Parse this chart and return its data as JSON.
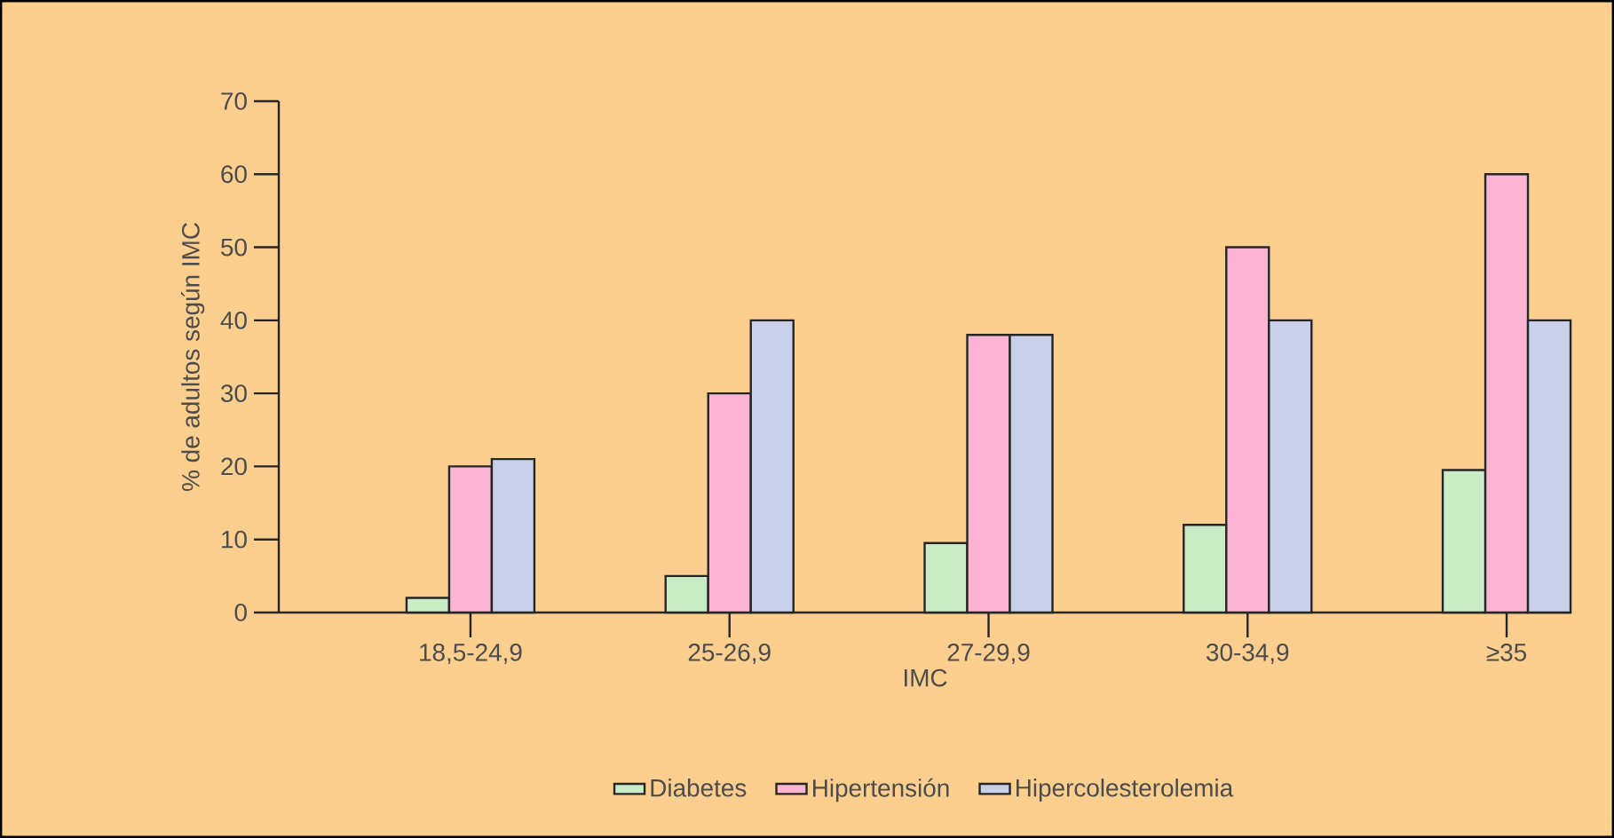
{
  "chart_data": {
    "type": "bar",
    "xlabel": "IMC",
    "ylabel": "% de adultos según IMC",
    "categories": [
      "18,5-24,9",
      "25-26,9",
      "27-29,9",
      "30-34,9",
      "≥35"
    ],
    "series": [
      {
        "name": "Diabetes",
        "color": "#c9ebc6",
        "values": [
          2,
          5,
          9.5,
          12,
          19.5
        ]
      },
      {
        "name": "Hipertensión",
        "color": "#fbb5d2",
        "values": [
          20,
          30,
          38,
          50,
          60
        ]
      },
      {
        "name": "Hipercolesterolemia",
        "color": "#c9d1e8",
        "values": [
          21,
          40,
          38,
          40,
          40
        ]
      }
    ],
    "ylim": [
      0,
      70
    ],
    "yticks": [
      0,
      10,
      20,
      30,
      40,
      50,
      60,
      70
    ],
    "legend": "bottom"
  }
}
